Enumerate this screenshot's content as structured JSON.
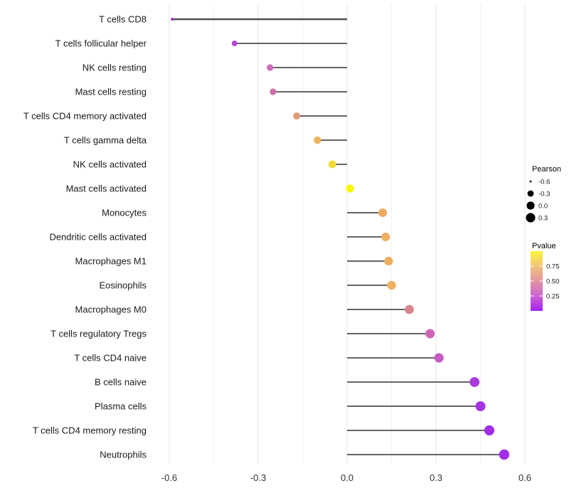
{
  "chart_data": {
    "type": "scatter",
    "variant": "horizontal-lollipop",
    "title": "",
    "xlabel": "",
    "ylabel": "",
    "xlim": [
      -0.66,
      0.73
    ],
    "xticks": [
      -0.6,
      -0.3,
      0.0,
      0.3,
      0.6
    ],
    "xtick_labels": [
      "-0.6",
      "-0.3",
      "0.0",
      "0.3",
      "0.6"
    ],
    "minor_gridlines": [
      -0.45,
      -0.15,
      0.15,
      0.45
    ],
    "grid": "vertical major + minor, light gray on white",
    "legend_position": "right",
    "categories": [
      "T cells CD8",
      "T cells follicular helper",
      "NK cells resting",
      "Mast cells resting",
      "T cells CD4 memory activated",
      "T cells gamma delta",
      "NK cells activated",
      "Mast cells activated",
      "Monocytes",
      "Dendritic cells activated",
      "Macrophages M1",
      "Eosinophils",
      "Macrophages M0",
      "T cells regulatory  Tregs",
      "T cells CD4 naive",
      "B cells naive",
      "Plasma cells",
      "T cells CD4 memory resting",
      "Neutrophils"
    ],
    "values": [
      -0.59,
      -0.38,
      -0.26,
      -0.25,
      -0.17,
      -0.1,
      -0.05,
      0.01,
      0.12,
      0.13,
      0.14,
      0.15,
      0.21,
      0.28,
      0.31,
      0.43,
      0.45,
      0.48,
      0.53
    ],
    "point_colors": [
      "#9b2ad8",
      "#b846d8",
      "#cc6cba",
      "#cf70ac",
      "#e09a78",
      "#ecb45c",
      "#f2dc3c",
      "#fbf702",
      "#efac60",
      "#efae60",
      "#efad5f",
      "#f0b060",
      "#d9838c",
      "#ce64b8",
      "#c55bc8",
      "#aa3adc",
      "#a633e3",
      "#a02be8",
      "#a32bea"
    ],
    "legends": {
      "size": {
        "title": "Pearson",
        "entries": [
          {
            "label": "-0.6",
            "value": -0.6
          },
          {
            "label": "-0.3",
            "value": -0.3
          },
          {
            "label": "0.0",
            "value": 0.0
          },
          {
            "label": "0.3",
            "value": 0.3
          }
        ],
        "dot_color": "#000000"
      },
      "color": {
        "title": "Pvalue",
        "ticks": [
          {
            "label": "0.75",
            "value": 0.75
          },
          {
            "label": "0.50",
            "value": 0.5
          },
          {
            "label": "0.25",
            "value": 0.25
          }
        ],
        "gradient_top_to_bottom": [
          "#faf63b",
          "#f2c37a",
          "#e295a3",
          "#cc62d0",
          "#a622f3"
        ]
      }
    },
    "colors": {
      "background": "#ffffff",
      "stem": "#4f4f4f",
      "grid_major": "#e4e4e4",
      "grid_minor": "#f1f1f1",
      "axis_text": "#333333"
    }
  }
}
